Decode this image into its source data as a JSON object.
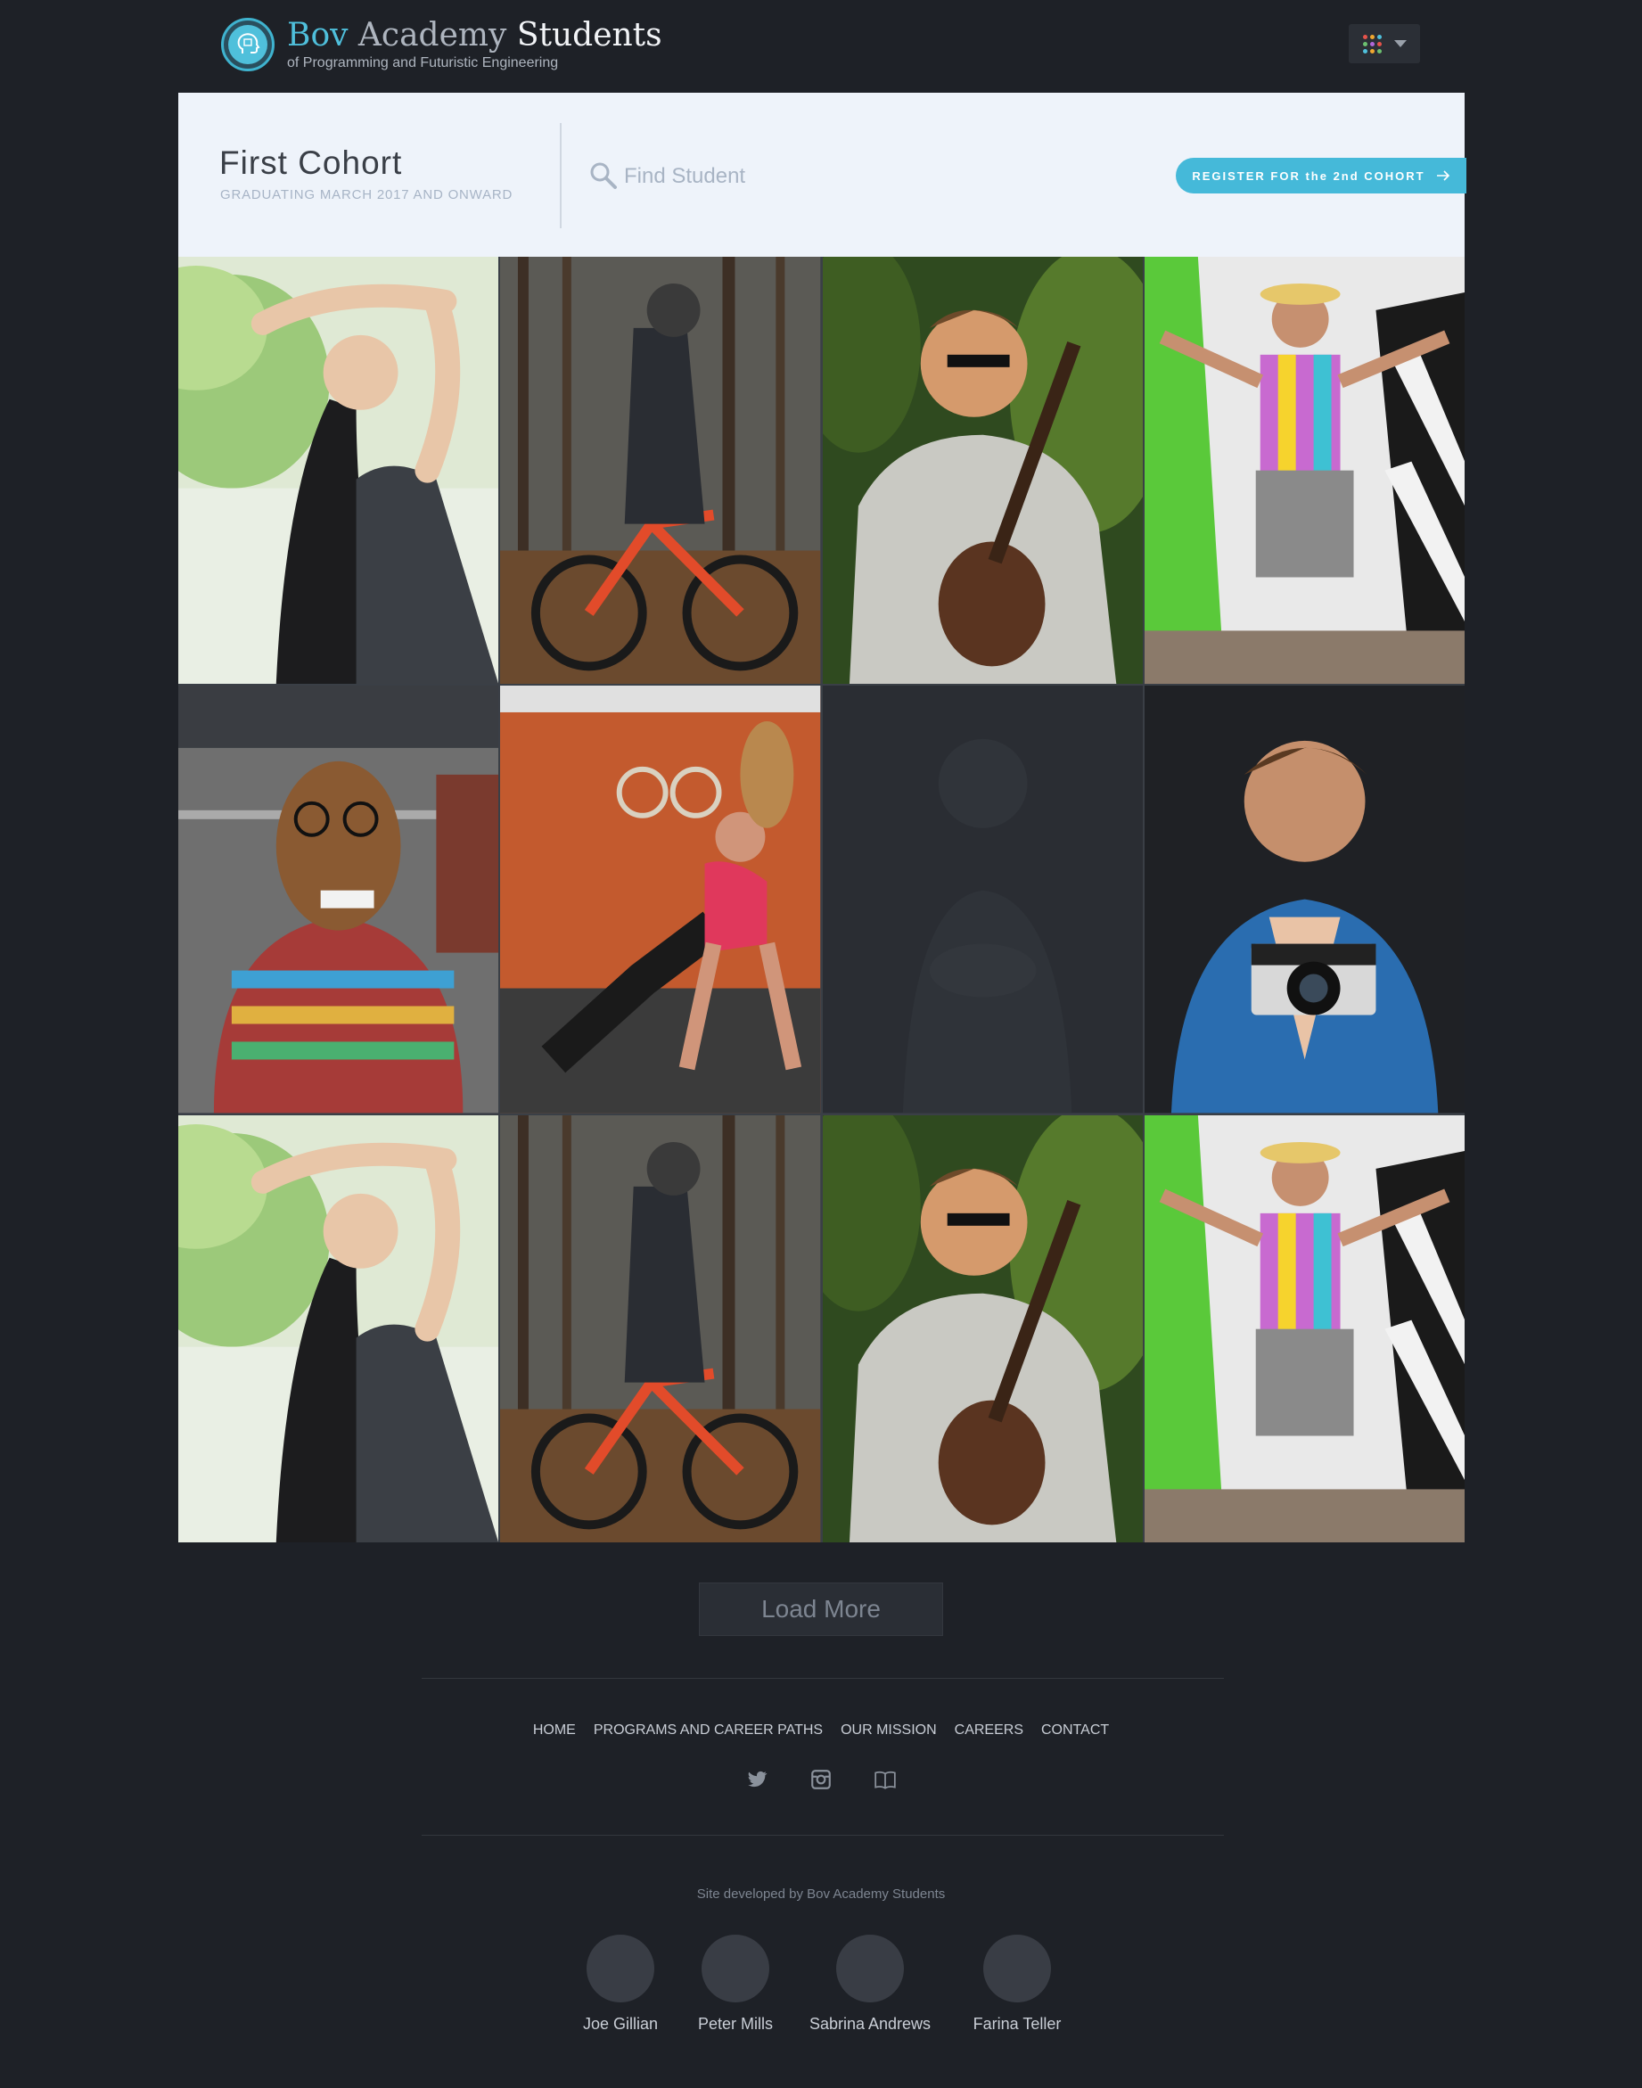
{
  "header": {
    "brand_bov": "Bov",
    "brand_academy": "Academy",
    "brand_students": "Students",
    "subtitle": "of Programming and Futuristic Engineering",
    "logo_icon": "head-circuit-icon",
    "apps_icon": "apps-grid-icon"
  },
  "cohort": {
    "title": "First Cohort",
    "subtitle": "GRADUATING MARCH 2017 AND ONWARD",
    "search_placeholder": "Find Student",
    "register_label": "REGISTER FOR the 2nd COHORT"
  },
  "students": [
    {
      "photo": "woman stretching outdoors"
    },
    {
      "photo": "mountain biker in forest"
    },
    {
      "photo": "man playing ukulele"
    },
    {
      "photo": "colorful costume man"
    },
    {
      "photo": "person in horse mask"
    },
    {
      "photo": "woman doing pushup in gym"
    },
    {
      "photo": "dim placeholder photo"
    },
    {
      "photo": "man holding camera"
    },
    {
      "photo": "woman stretching outdoors"
    },
    {
      "photo": "mountain biker in forest"
    },
    {
      "photo": "man playing ukulele"
    },
    {
      "photo": "colorful costume man"
    }
  ],
  "load_more_label": "Load More",
  "footer": {
    "nav": [
      "HOME",
      "PROGRAMS AND CAREER PATHS",
      "OUR MISSION",
      "CAREERS",
      "CONTACT"
    ],
    "social_icons": [
      "twitter-icon",
      "instagram-icon",
      "book-icon"
    ],
    "credit": "Site developed by Bov Academy Students",
    "developers": [
      "Joe Gillian",
      "Peter Mills",
      "Sabrina Andrews",
      "Farina Teller"
    ]
  },
  "colors": {
    "background": "#1e2127",
    "accent": "#45b9d9",
    "panel": "#eef3fa"
  }
}
